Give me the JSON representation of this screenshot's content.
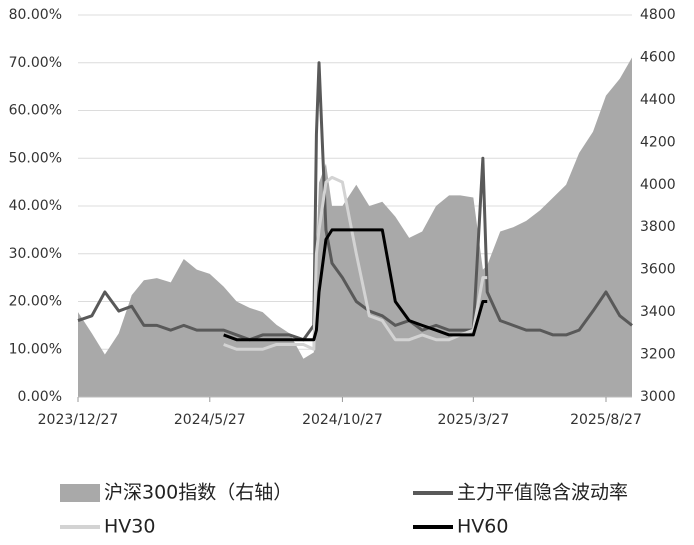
{
  "chart_data": {
    "type": "line",
    "x": [
      "2023/12/27",
      "2024/1/12",
      "2024/1/27",
      "2024/2/12",
      "2024/2/27",
      "2024/3/12",
      "2024/3/27",
      "2024/4/12",
      "2024/4/27",
      "2024/5/12",
      "2024/5/27",
      "2024/6/12",
      "2024/6/27",
      "2024/7/12",
      "2024/7/27",
      "2024/8/12",
      "2024/8/27",
      "2024/9/12",
      "2024/9/24",
      "2024/9/27",
      "2024/9/30",
      "2024/10/8",
      "2024/10/15",
      "2024/10/27",
      "2024/11/12",
      "2024/11/27",
      "2024/12/12",
      "2024/12/27",
      "2025/1/12",
      "2025/1/27",
      "2025/2/12",
      "2025/2/27",
      "2025/3/12",
      "2025/3/27",
      "2025/4/7",
      "2025/4/12",
      "2025/4/27",
      "2025/5/12",
      "2025/5/27",
      "2025/6/12",
      "2025/6/27",
      "2025/7/12",
      "2025/7/27",
      "2025/8/12",
      "2025/8/27",
      "2025/9/12",
      "2025/9/26"
    ],
    "xlim": [
      "2023/12/27",
      "2025/9/26"
    ],
    "xticks": [
      "2023/12/27",
      "2024/5/27",
      "2024/10/27",
      "2025/3/27",
      "2025/8/27"
    ],
    "ylim": [
      0,
      80
    ],
    "yticks": [
      {
        "value": 0,
        "label": "0.00%"
      },
      {
        "value": 10,
        "label": "10.00%"
      },
      {
        "value": 20,
        "label": "20.00%"
      },
      {
        "value": 30,
        "label": "30.00%"
      },
      {
        "value": 40,
        "label": "40.00%"
      },
      {
        "value": 50,
        "label": "50.00%"
      },
      {
        "value": 60,
        "label": "60.00%"
      },
      {
        "value": 70,
        "label": "70.00%"
      },
      {
        "value": 80,
        "label": "80.00%"
      }
    ],
    "y2lim": [
      3000,
      4800
    ],
    "y2ticks": [
      3000,
      3200,
      3400,
      3600,
      3800,
      4000,
      4200,
      4400,
      4600,
      4800
    ],
    "grid": true,
    "series": [
      {
        "name": "沪深300指数（右轴）",
        "color": "#a9a9a9",
        "axis": "y2",
        "kind": "area",
        "values": [
          3400,
          3300,
          3200,
          3300,
          3480,
          3550,
          3560,
          3540,
          3650,
          3600,
          3580,
          3520,
          3450,
          3420,
          3400,
          3340,
          3300,
          3180,
          3210,
          3700,
          4010,
          4100,
          3900,
          3900,
          4000,
          3900,
          3920,
          3850,
          3750,
          3780,
          3900,
          3950,
          3950,
          3940,
          3600,
          3620,
          3780,
          3800,
          3830,
          3880,
          3940,
          4000,
          4150,
          4250,
          4420,
          4500,
          4600
        ]
      },
      {
        "name": "主力平值隐含波动率",
        "color": "#595959",
        "values": [
          16,
          17,
          22,
          18,
          19,
          15,
          15,
          14,
          15,
          14,
          14,
          14,
          13,
          12,
          13,
          13,
          13,
          12,
          15,
          55,
          70,
          35,
          28,
          25,
          20,
          18,
          17,
          15,
          16,
          14,
          15,
          14,
          14,
          14,
          50,
          22,
          16,
          15,
          14,
          14,
          13,
          13,
          14,
          18,
          22,
          17,
          15
        ]
      },
      {
        "name": "HV30",
        "color": "#d3d3d3",
        "values": [
          null,
          null,
          null,
          null,
          null,
          null,
          null,
          null,
          null,
          null,
          null,
          11,
          10,
          10,
          10,
          11,
          11,
          11,
          10,
          30,
          35,
          45,
          46,
          45,
          30,
          17,
          16,
          12,
          12,
          13,
          12,
          12,
          13,
          14,
          25,
          25,
          null,
          null,
          null,
          null,
          null,
          null,
          null,
          null,
          null,
          null,
          null
        ]
      },
      {
        "name": "HV60",
        "color": "#000000",
        "values": [
          null,
          null,
          null,
          null,
          null,
          null,
          null,
          null,
          null,
          null,
          null,
          13,
          12,
          12,
          12,
          12,
          12,
          12,
          12,
          14,
          22,
          33,
          35,
          35,
          35,
          35,
          35,
          20,
          16,
          15,
          14,
          13,
          13,
          13,
          20,
          20,
          null,
          null,
          null,
          null,
          null,
          null,
          null,
          null,
          null,
          null,
          null
        ]
      }
    ]
  }
}
